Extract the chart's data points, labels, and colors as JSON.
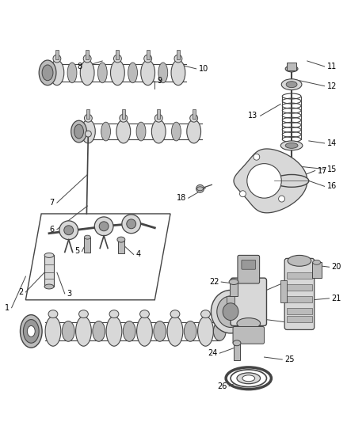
{
  "background_color": "#ffffff",
  "line_color": "#444444",
  "fill_light": "#d8d8d8",
  "fill_mid": "#bbbbbb",
  "fill_dark": "#999999",
  "label_color": "#000000",
  "label_fontsize": 7.0,
  "fig_width": 4.38,
  "fig_height": 5.33,
  "dpi": 100
}
